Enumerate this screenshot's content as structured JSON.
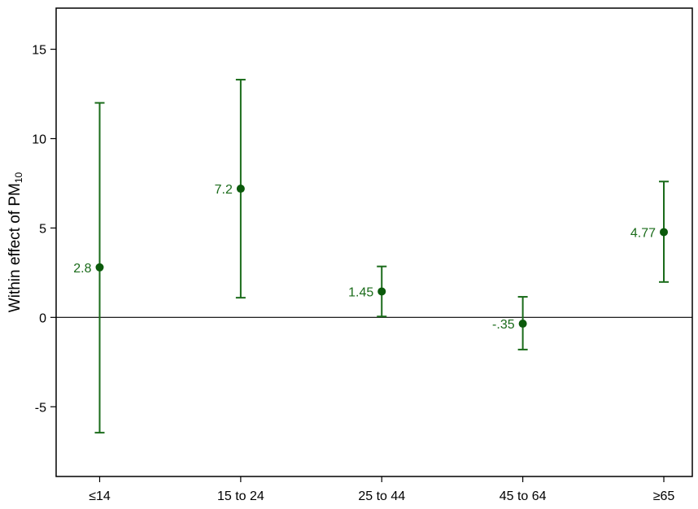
{
  "chart_data": {
    "type": "scatter",
    "subtype": "point-estimate-with-error-bars",
    "categories": [
      "≤14",
      "15 to 24",
      "25 to 44",
      "45 to 64",
      "≥65"
    ],
    "series": [
      {
        "estimates": [
          2.8,
          7.2,
          1.45,
          -0.35,
          4.77
        ],
        "estimate_labels": [
          "2.8",
          "7.2",
          "1.45",
          "-.35",
          "4.77"
        ],
        "lower": [
          -6.45,
          1.1,
          0.05,
          -1.8,
          1.98
        ],
        "upper": [
          12.0,
          13.3,
          2.85,
          1.15,
          7.6
        ]
      }
    ],
    "ylabel": {
      "main": "Within effect of PM",
      "subscript": "10"
    },
    "xlabel": "",
    "ylim": [
      -8.9,
      17.3
    ],
    "yticks": [
      -5,
      0,
      5,
      10,
      15
    ],
    "ytick_labels": [
      "-5",
      "0",
      "5",
      "10",
      "15"
    ],
    "reference_line_y": 0,
    "grid": false,
    "legend": "none",
    "colors": {
      "series": "#1a6b1a",
      "marker": "#0b5a0b",
      "axis": "#000000"
    }
  }
}
